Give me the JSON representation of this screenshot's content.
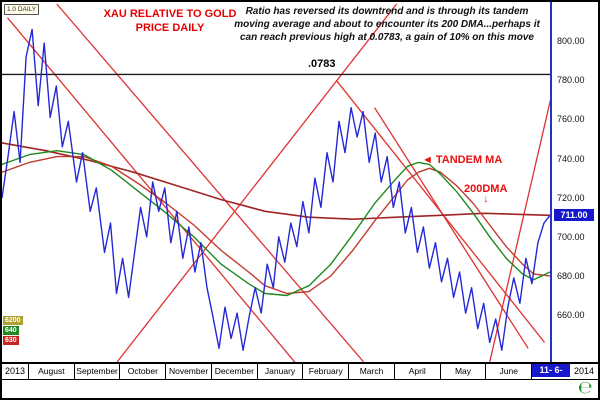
{
  "window": {
    "bg": "#ffffff",
    "border_color": "#000000",
    "symbol_tag": "1.0 DAILY"
  },
  "title": {
    "line1": "XAU RELATIVE TO GOLD",
    "line2": "PRICE DAILY",
    "color": "#e80000"
  },
  "annotation": {
    "lines": [
      "Ratio has reversed its downtrend and is through its tandem",
      "moving average and about to encounter its 200 DMA...perhaps it",
      "can reach previous high at 0.0783, a gain of 10% on this move"
    ]
  },
  "footer": {
    "logo": "℮",
    "logo_color": "#1a8a1a"
  },
  "chart_data": {
    "type": "line",
    "title": "XAU RELATIVE TO GOLD PRICE DAILY",
    "x_axis": {
      "labels": [
        "August",
        "September",
        "October",
        "November",
        "December",
        "January",
        "February",
        "March",
        "April",
        "May",
        "June"
      ],
      "year_left": "2013",
      "year_right": "2014",
      "date_badge": "11- 6-"
    },
    "y_axis": {
      "min": 636,
      "max": 820,
      "ticks": [
        {
          "v": 800,
          "label": "800.00"
        },
        {
          "v": 780,
          "label": "780.00"
        },
        {
          "v": 760,
          "label": "760.00"
        },
        {
          "v": 740,
          "label": "740.00"
        },
        {
          "v": 720,
          "label": "720.00"
        },
        {
          "v": 700,
          "label": "700.00"
        },
        {
          "v": 680,
          "label": "680.00"
        },
        {
          "v": 660,
          "label": "660.00"
        }
      ],
      "current": {
        "v": 711,
        "label": "711.00",
        "bg": "#1717cd"
      }
    },
    "resistance": {
      "v": 783,
      "label": ".0783",
      "color": "#1a1a1a"
    },
    "callouts": {
      "tandem_ma": {
        "arrow": "◄",
        "text": "TANDEM MA",
        "color": "#e81010"
      },
      "dma200": {
        "text": "200DMA",
        "arrow": "↓",
        "color": "#e81010"
      }
    },
    "left_tags": [
      {
        "text": "6200",
        "bg": "#b0a030",
        "fg": "#ffffff"
      },
      {
        "text": "640",
        "bg": "#1f8a1f",
        "fg": "#ffffff"
      },
      {
        "text": "630",
        "bg": "#cc2222",
        "fg": "#ffffff"
      }
    ],
    "trendlines": {
      "color": "#e03030",
      "width": 1.3,
      "lines": [
        [
          1,
          812,
          54,
          634
        ],
        [
          10,
          819,
          66,
          636
        ],
        [
          21,
          636,
          72,
          819
        ],
        [
          61,
          780,
          99,
          646
        ],
        [
          68,
          766,
          96,
          643
        ],
        [
          89,
          636,
          101,
          781
        ]
      ]
    },
    "series": [
      {
        "name": "xau-gold-ratio",
        "color": "#2329d6",
        "width": 1.4,
        "points": [
          [
            0,
            720
          ],
          [
            1.1,
            741
          ],
          [
            2.2,
            764
          ],
          [
            3.3,
            738
          ],
          [
            4.4,
            792
          ],
          [
            5.5,
            806
          ],
          [
            6.6,
            767
          ],
          [
            7.7,
            799
          ],
          [
            8.8,
            761
          ],
          [
            9.9,
            777
          ],
          [
            11,
            746
          ],
          [
            12.1,
            759
          ],
          [
            13.6,
            728
          ],
          [
            14.7,
            743
          ],
          [
            16.1,
            713
          ],
          [
            17.2,
            725
          ],
          [
            18.7,
            692
          ],
          [
            19.8,
            707
          ],
          [
            20.9,
            671
          ],
          [
            22,
            689
          ],
          [
            23.1,
            669
          ],
          [
            24.2,
            692
          ],
          [
            25.3,
            715
          ],
          [
            26.4,
            700
          ],
          [
            27.5,
            728
          ],
          [
            28.6,
            713
          ],
          [
            29.7,
            725
          ],
          [
            30.8,
            697
          ],
          [
            31.9,
            713
          ],
          [
            33,
            689
          ],
          [
            34.1,
            705
          ],
          [
            35.2,
            682
          ],
          [
            36.3,
            697
          ],
          [
            37.4,
            674
          ],
          [
            38.5,
            659
          ],
          [
            39.6,
            643
          ],
          [
            40.7,
            664
          ],
          [
            41.8,
            648
          ],
          [
            42.9,
            661
          ],
          [
            44,
            642
          ],
          [
            45.1,
            659
          ],
          [
            46.2,
            674
          ],
          [
            47.3,
            661
          ],
          [
            48.4,
            686
          ],
          [
            49.5,
            674
          ],
          [
            50.5,
            700
          ],
          [
            51.6,
            687
          ],
          [
            52.7,
            707
          ],
          [
            53.8,
            695
          ],
          [
            54.9,
            718
          ],
          [
            56,
            702
          ],
          [
            57.1,
            730
          ],
          [
            58.2,
            715
          ],
          [
            59.3,
            743
          ],
          [
            60.4,
            728
          ],
          [
            61.5,
            759
          ],
          [
            62.6,
            743
          ],
          [
            63.7,
            766
          ],
          [
            64.8,
            751
          ],
          [
            65.9,
            764
          ],
          [
            67,
            738
          ],
          [
            68.1,
            753
          ],
          [
            69.2,
            728
          ],
          [
            70.3,
            741
          ],
          [
            71.4,
            715
          ],
          [
            72.5,
            728
          ],
          [
            73.6,
            702
          ],
          [
            74.7,
            715
          ],
          [
            75.8,
            692
          ],
          [
            76.9,
            705
          ],
          [
            78,
            684
          ],
          [
            79.1,
            697
          ],
          [
            80.2,
            677
          ],
          [
            81.3,
            689
          ],
          [
            82.4,
            669
          ],
          [
            83.5,
            682
          ],
          [
            84.6,
            661
          ],
          [
            85.7,
            674
          ],
          [
            86.8,
            653
          ],
          [
            87.9,
            666
          ],
          [
            89,
            646
          ],
          [
            90.1,
            658
          ],
          [
            91.2,
            642
          ],
          [
            92.3,
            664
          ],
          [
            93.4,
            679
          ],
          [
            94.5,
            666
          ],
          [
            95.6,
            689
          ],
          [
            96.7,
            676
          ],
          [
            97.8,
            697
          ],
          [
            98.9,
            707
          ],
          [
            100,
            711
          ]
        ]
      },
      {
        "name": "tandem-ma-green",
        "color": "#1f8a1f",
        "width": 1.4,
        "points": [
          [
            0,
            737
          ],
          [
            5,
            742
          ],
          [
            10,
            744
          ],
          [
            15,
            742
          ],
          [
            20,
            734
          ],
          [
            25,
            723
          ],
          [
            30,
            712
          ],
          [
            35,
            700
          ],
          [
            40,
            686
          ],
          [
            45,
            676
          ],
          [
            48,
            671
          ],
          [
            52,
            670
          ],
          [
            56,
            675
          ],
          [
            60,
            686
          ],
          [
            64,
            701
          ],
          [
            68,
            717
          ],
          [
            72,
            730
          ],
          [
            74,
            736
          ],
          [
            76,
            738
          ],
          [
            78,
            737
          ],
          [
            80,
            732
          ],
          [
            83,
            723
          ],
          [
            86,
            712
          ],
          [
            89,
            700
          ],
          [
            92,
            689
          ],
          [
            95,
            681
          ],
          [
            97,
            678
          ],
          [
            100,
            682
          ]
        ]
      },
      {
        "name": "tandem-ma-red",
        "color": "#c23a2e",
        "width": 1.4,
        "points": [
          [
            0,
            733
          ],
          [
            5,
            738
          ],
          [
            10,
            741
          ],
          [
            15,
            741
          ],
          [
            20,
            736
          ],
          [
            25,
            727
          ],
          [
            30,
            717
          ],
          [
            35,
            706
          ],
          [
            40,
            693
          ],
          [
            45,
            682
          ],
          [
            48,
            675
          ],
          [
            52,
            671
          ],
          [
            56,
            672
          ],
          [
            60,
            680
          ],
          [
            64,
            693
          ],
          [
            68,
            708
          ],
          [
            72,
            722
          ],
          [
            74,
            729
          ],
          [
            76,
            733
          ],
          [
            78,
            735
          ],
          [
            80,
            733
          ],
          [
            83,
            726
          ],
          [
            86,
            717
          ],
          [
            89,
            706
          ],
          [
            92,
            695
          ],
          [
            95,
            686
          ],
          [
            97,
            681
          ],
          [
            100,
            680
          ]
        ]
      },
      {
        "name": "ma-200",
        "color": "#a02424",
        "width": 1.6,
        "points": [
          [
            0,
            748
          ],
          [
            8,
            744
          ],
          [
            16,
            739
          ],
          [
            24,
            733
          ],
          [
            32,
            726
          ],
          [
            40,
            719
          ],
          [
            48,
            713
          ],
          [
            56,
            710
          ],
          [
            64,
            709
          ],
          [
            72,
            710
          ],
          [
            80,
            711
          ],
          [
            88,
            712
          ],
          [
            100,
            711
          ]
        ]
      }
    ]
  }
}
